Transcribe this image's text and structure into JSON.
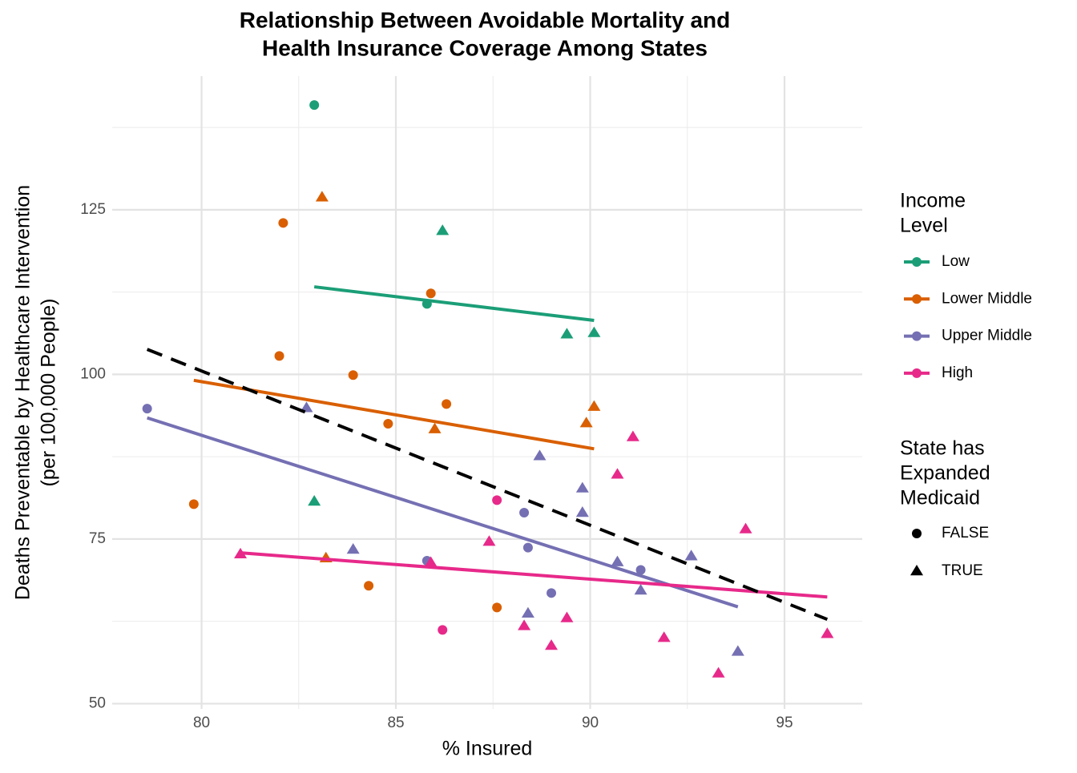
{
  "chart_data": {
    "type": "scatter",
    "title": [
      "Relationship Between Avoidable Mortality and",
      "Health Insurance Coverage Among States"
    ],
    "x_label": "% Insured",
    "y_label": [
      "Deaths Preventable by Healthcare Intervention",
      "(per 100,000 People)"
    ],
    "xlim": [
      77.7,
      97.0
    ],
    "ylim": [
      49.2,
      145.3
    ],
    "xticks": [
      80,
      85,
      90,
      95
    ],
    "yticks": [
      50,
      75,
      100,
      125
    ],
    "x_minor_ticks": [
      82.5,
      87.5,
      92.5
    ],
    "y_minor_ticks": [
      62.5,
      87.5,
      112.5,
      137.5
    ],
    "grid": true,
    "legend_position": "right",
    "color_legend_title": [
      "Income",
      "Level"
    ],
    "shape_legend": {
      "title": [
        "State has",
        "Expanded",
        "Medicaid"
      ],
      "entries": [
        {
          "label": "FALSE",
          "shape": "circle"
        },
        {
          "label": "TRUE",
          "shape": "triangle"
        }
      ]
    },
    "series": [
      {
        "name": "Low",
        "color": "#1b9e77",
        "x": [
          82.9,
          86.2,
          85.8,
          89.4,
          90.1,
          82.9
        ],
        "values": [
          140.9,
          121.8,
          110.7,
          106.1,
          106.3,
          80.7
        ],
        "medicaid": [
          "FALSE",
          "TRUE",
          "FALSE",
          "TRUE",
          "TRUE",
          "TRUE"
        ],
        "fit": {
          "x": [
            82.9,
            90.1
          ],
          "y": [
            113.3,
            108.2
          ]
        }
      },
      {
        "name": "Lower Middle",
        "color": "#d95f02",
        "x": [
          83.1,
          82.1,
          85.9,
          82.0,
          83.9,
          86.3,
          90.1,
          84.8,
          89.9,
          86.0,
          79.8,
          83.2,
          84.3,
          87.6
        ],
        "values": [
          126.9,
          123.0,
          112.3,
          102.8,
          99.9,
          95.5,
          95.1,
          92.5,
          92.6,
          91.7,
          80.3,
          72.1,
          67.9,
          64.6
        ],
        "medicaid": [
          "TRUE",
          "FALSE",
          "FALSE",
          "FALSE",
          "FALSE",
          "FALSE",
          "TRUE",
          "FALSE",
          "TRUE",
          "TRUE",
          "FALSE",
          "TRUE",
          "FALSE",
          "FALSE"
        ],
        "fit": {
          "x": [
            79.8,
            90.1
          ],
          "y": [
            99.1,
            88.7
          ]
        }
      },
      {
        "name": "Upper Middle",
        "color": "#7570b3",
        "x": [
          78.6,
          82.7,
          88.7,
          89.8,
          89.8,
          88.3,
          83.9,
          88.4,
          85.8,
          90.7,
          91.3,
          92.6,
          91.3,
          89.0,
          88.4,
          93.8
        ],
        "values": [
          94.8,
          94.9,
          87.6,
          82.7,
          79.0,
          79.0,
          73.4,
          73.7,
          71.7,
          71.5,
          70.3,
          72.4,
          67.2,
          66.8,
          63.7,
          57.9
        ],
        "medicaid": [
          "FALSE",
          "TRUE",
          "TRUE",
          "TRUE",
          "TRUE",
          "FALSE",
          "TRUE",
          "FALSE",
          "FALSE",
          "TRUE",
          "FALSE",
          "TRUE",
          "TRUE",
          "FALSE",
          "TRUE",
          "TRUE"
        ],
        "fit": {
          "x": [
            78.6,
            93.8
          ],
          "y": [
            93.4,
            64.7
          ]
        }
      },
      {
        "name": "High",
        "color": "#e7298a",
        "x": [
          91.1,
          90.7,
          87.6,
          94.0,
          87.4,
          81.0,
          85.9,
          89.4,
          88.3,
          86.2,
          96.1,
          91.9,
          89.0,
          93.3
        ],
        "values": [
          90.5,
          84.8,
          80.9,
          76.5,
          74.6,
          72.7,
          71.4,
          63.0,
          61.8,
          61.2,
          60.6,
          60.0,
          58.8,
          54.6
        ],
        "medicaid": [
          "TRUE",
          "TRUE",
          "FALSE",
          "TRUE",
          "TRUE",
          "TRUE",
          "TRUE",
          "TRUE",
          "TRUE",
          "FALSE",
          "TRUE",
          "TRUE",
          "TRUE",
          "TRUE"
        ],
        "fit": {
          "x": [
            81.0,
            96.1
          ],
          "y": [
            72.9,
            66.2
          ]
        }
      }
    ],
    "overall_fit": {
      "x": [
        78.6,
        96.1
      ],
      "y": [
        103.8,
        62.8
      ],
      "color": "#000000",
      "dashed": true
    }
  }
}
